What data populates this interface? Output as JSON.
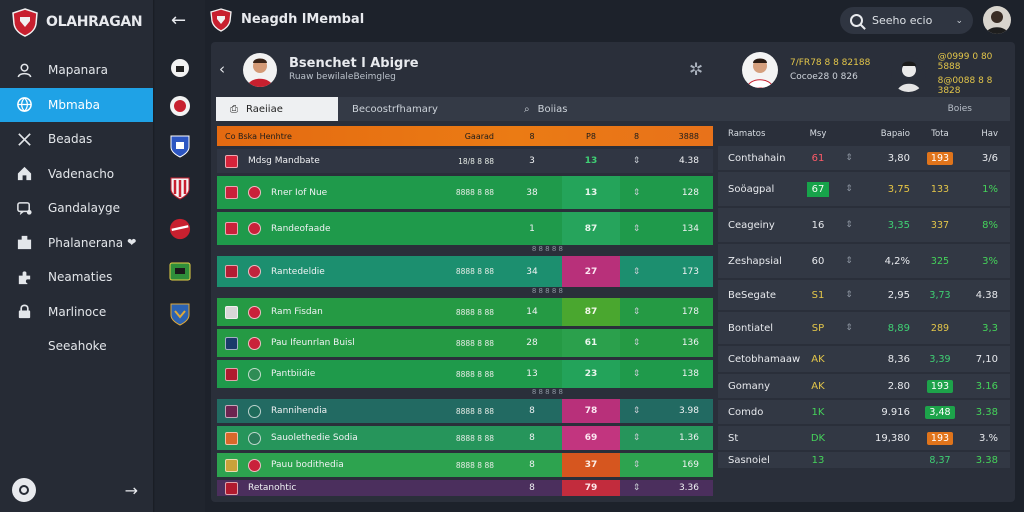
{
  "app": {
    "brand": "OLAHRAGAN",
    "title": "Neagdh lMembal"
  },
  "sidebar": {
    "items": [
      {
        "label": "Mapanara",
        "icon": "user-icon",
        "active": false
      },
      {
        "label": "Mbmaba",
        "icon": "globe-icon",
        "active": true
      },
      {
        "label": "Beadas",
        "icon": "tools-icon",
        "active": false
      },
      {
        "label": "Vadenacho",
        "icon": "home-icon",
        "active": false
      },
      {
        "label": "Gandalayge",
        "icon": "chat-icon",
        "active": false
      },
      {
        "label": "Phalanerana",
        "icon": "building-icon",
        "active": false,
        "heart": "❤"
      },
      {
        "label": "Neamaties",
        "icon": "puzzle-icon",
        "active": false
      },
      {
        "label": "Marlinoce",
        "icon": "lock-icon",
        "active": false
      },
      {
        "label": "Seeahoke",
        "icon": "",
        "active": false
      }
    ]
  },
  "search": {
    "value": "Seeho ecio"
  },
  "match": {
    "title": "Bsenchet l Abigre",
    "subtitle": "Ruaw bewilaleBeimgleg",
    "players": [
      {
        "line1": "7/FR78 8 8 82188",
        "line2": "Cocoe28 0 826"
      },
      {
        "line1": "@0999 0 80 5888",
        "line2": "8@0088 8 8 3828"
      }
    ]
  },
  "tabs": [
    {
      "label": "Raeiiae",
      "icon": "⎙",
      "active": true
    },
    {
      "label": "Becoostrfhamary",
      "icon": "",
      "active": false
    },
    {
      "label": "Boiias",
      "icon": "⌕",
      "active": false
    }
  ],
  "tabs_right": "Boies",
  "table": {
    "headers": {
      "team": "Co Bska Henhtre",
      "form": "Gaarad",
      "p": "8",
      "pts": "P8",
      "trend": "8",
      "gd": "3888"
    },
    "rows": [
      {
        "team": "Mdsg Mandbate",
        "form": "18/8 8 88",
        "p": "3",
        "pts": "13",
        "trend": "⇕",
        "gd": "4.38",
        "bg": "#303643",
        "pts_bg": "",
        "pts_color": "#3fd074",
        "height": 24,
        "crest": "#d6233a",
        "crest2": ""
      },
      {
        "team": "Rner Iof Nue",
        "form": "8888 8 88",
        "p": "38",
        "pts": "13",
        "trend": "⇕",
        "gd": "128",
        "bg": "#1f9a4b",
        "pts_bg": "#24a45a",
        "pts_color": "#e8f5ec",
        "height": 33,
        "crest": "#c9213a",
        "crest2": "#c9213a"
      },
      {
        "team": "Randeofaade",
        "form": "",
        "p": "1",
        "pts": "87",
        "trend": "⇕",
        "gd": "134",
        "bg": "#1f9a4b",
        "pts_bg": "#26a45c",
        "pts_color": "#e8f5ec",
        "height": 33,
        "crest": "#c9213a",
        "crest2": "#c9213a"
      },
      {
        "team": "Rantedeldie",
        "form": "8888 8 88",
        "p": "34",
        "pts": "27",
        "trend": "⇕",
        "gd": "173",
        "bg": "#1c8f6f",
        "pts_bg": "#b8307a",
        "pts_color": "#fbe6f1",
        "height": 31,
        "crest": "#b31d33",
        "crest2": "#c0243d"
      },
      {
        "team": "Ram Fisdan",
        "form": "8888 8 88",
        "p": "14",
        "pts": "87",
        "trend": "⇕",
        "gd": "178",
        "bg": "#259a44",
        "pts_bg": "#4aa72f",
        "pts_color": "#f3f7ea",
        "height": 28,
        "crest": "#d7d7d7",
        "crest2": "#c9213a"
      },
      {
        "team": "Pau Ifeunrlan Buisl",
        "form": "8888 8 88",
        "p": "28",
        "pts": "61",
        "trend": "⇕",
        "gd": "136",
        "bg": "#259a44",
        "pts_bg": "#2ba04c",
        "pts_color": "#eaf6ee",
        "height": 28,
        "crest": "#1a3a6a",
        "crest2": "#c9213a"
      },
      {
        "team": "Pantbiidie",
        "form": "8888 8 88",
        "p": "13",
        "pts": "23",
        "trend": "⇕",
        "gd": "138",
        "bg": "#1f9a4b",
        "pts_bg": "#23a35a",
        "pts_color": "#e8f5ec",
        "height": 28,
        "crest": "#b01a2e",
        "crest2": "#2f8c55"
      },
      {
        "team": "Rannihendia",
        "form": "8888 8 88",
        "p": "8",
        "pts": "78",
        "trend": "⇕",
        "gd": "3.98",
        "bg": "#226a62",
        "pts_bg": "#b8307a",
        "pts_color": "#fbe6f1",
        "height": 24,
        "crest": "#6c2450",
        "crest2": "#1e6b5b"
      },
      {
        "team": "Sauolethedie Sodia",
        "form": "8888 8 88",
        "p": "8",
        "pts": "69",
        "trend": "⇕",
        "gd": "1.36",
        "bg": "#26955b",
        "pts_bg": "#c2357f",
        "pts_color": "#fbe6f1",
        "height": 24,
        "crest": "#d9682a",
        "crest2": "#2b7d5b"
      },
      {
        "team": "Pauu bodithedia",
        "form": "8888 8 88",
        "p": "8",
        "pts": "37",
        "trend": "⇕",
        "gd": "169",
        "bg": "#2da34f",
        "pts_bg": "#d6561f",
        "pts_color": "#fdeee6",
        "height": 24,
        "crest": "#c9a23a",
        "crest2": "#c9213a"
      },
      {
        "team": "Retanohtic",
        "form": "",
        "p": "8",
        "pts": "79",
        "trend": "⇕",
        "gd": "3.36",
        "bg": "#4b2f5d",
        "pts_bg": "#c22c3d",
        "pts_color": "#fde8ea",
        "height": 16,
        "crest": "#b01a2e",
        "crest2": ""
      }
    ],
    "separators": [
      {
        "after": 2,
        "text": "8 8 8 8 8"
      },
      {
        "after": 3,
        "text": "8 8 8 8 8"
      },
      {
        "after": 6,
        "text": "8 8 8 8 8"
      }
    ]
  },
  "stats": {
    "headers": {
      "name": "Ramatos",
      "val": "Msy",
      "num": "Bapaio",
      "pill": "Tota",
      "last": "Hav"
    },
    "rows": [
      {
        "name": "Conthahain",
        "val": "61",
        "val_color": "#ff5a68",
        "val_bg": "",
        "bar": "⇕",
        "num": "3,80",
        "pill": "193",
        "pill_bg": "#e0741b",
        "pill_color": "#fff",
        "last": "3/6",
        "last_color": "#e8eaee",
        "height": 24
      },
      {
        "name": "Soöagpal",
        "val": "67",
        "val_color": "#f4fbf2",
        "val_bg": "#17a34a",
        "bar": "⇕",
        "num": "3,75",
        "num_color": "#e6c545",
        "pill": "133",
        "pill_bg": "",
        "pill_color": "#e3c64a",
        "last": "1%",
        "last_color": "#45d35a",
        "height": 34
      },
      {
        "name": "Ceageiny",
        "val": "16",
        "val_color": "#e8eaee",
        "val_bg": "",
        "bar": "⇕",
        "num": "3,35",
        "num_color": "#3fd074",
        "pill": "337",
        "pill_bg": "",
        "pill_color": "#e3c64a",
        "last": "8%",
        "last_color": "#45d35a",
        "height": 34
      },
      {
        "name": "Zeshapsial",
        "val": "60",
        "val_color": "#e8eaee",
        "val_bg": "",
        "bar": "⇕",
        "num": "4,2%",
        "num_color": "#e8eaee",
        "pill": "325",
        "pill_bg": "",
        "pill_color": "#45d35a",
        "last": "3%",
        "last_color": "#45d35a",
        "height": 34
      },
      {
        "name": "BeSegate",
        "val": "S1",
        "val_color": "#e3c64a",
        "val_bg": "",
        "bar": "⇕",
        "num": "2,95",
        "num_color": "#e8eaee",
        "pill": "3,73",
        "pill_bg": "",
        "pill_color": "#3fd074",
        "last": "4.38",
        "last_color": "#e8eaee",
        "height": 30
      },
      {
        "name": "Bontiatel",
        "val": "SP",
        "val_color": "#e3c64a",
        "val_bg": "",
        "bar": "⇕",
        "num": "8,89",
        "num_color": "#3fd074",
        "pill": "289",
        "pill_bg": "",
        "pill_color": "#e3c64a",
        "last": "3,3",
        "last_color": "#45d35a",
        "height": 32
      },
      {
        "name": "Cetobhamaaw",
        "val": "AK",
        "val_color": "#e3c64a",
        "val_bg": "",
        "bar": "",
        "num": "8,36",
        "num_color": "#e8eaee",
        "pill": "3,39",
        "pill_bg": "",
        "pill_color": "#3fd074",
        "last": "7,10",
        "last_color": "#e8eaee",
        "height": 26
      },
      {
        "name": "Gomany",
        "val": "AK",
        "val_color": "#e3c64a",
        "val_bg": "",
        "bar": "",
        "num": "2.80",
        "num_color": "#e8eaee",
        "pill": "193",
        "pill_bg": "#1da34a",
        "pill_color": "#fff",
        "last": "3.16",
        "last_color": "#45d35a",
        "height": 24
      },
      {
        "name": "Comdo",
        "val": "1K",
        "val_color": "#45d35a",
        "val_bg": "",
        "bar": "",
        "num": "9.916",
        "num_color": "#e8eaee",
        "pill": "3,48",
        "pill_bg": "#1da34a",
        "pill_color": "#fff",
        "last": "3.38",
        "last_color": "#45d35a",
        "height": 24
      },
      {
        "name": "St",
        "val": "DK",
        "val_color": "#45d35a",
        "val_bg": "",
        "bar": "",
        "num": "19,380",
        "num_color": "#e8eaee",
        "pill": "193",
        "pill_bg": "#e0741b",
        "pill_color": "#fff",
        "last": "3.%",
        "last_color": "#e8eaee",
        "height": 24
      },
      {
        "name": "Sasnoiel",
        "val": "13",
        "val_color": "#45d35a",
        "val_bg": "",
        "bar": "",
        "num": "",
        "num_color": "#e8eaee",
        "pill": "8,37",
        "pill_bg": "",
        "pill_color": "#3fd074",
        "last": "3.38",
        "last_color": "#45d35a",
        "height": 16
      }
    ]
  }
}
